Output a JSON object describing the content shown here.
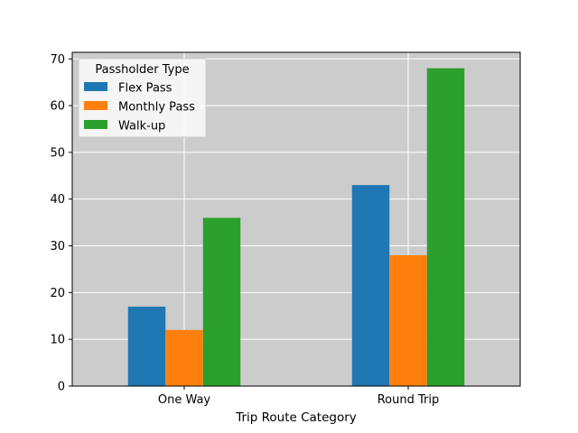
{
  "chart_data": {
    "type": "bar",
    "title": "",
    "xlabel": "Trip Route Category",
    "ylabel": "",
    "categories": [
      "One Way",
      "Round Trip"
    ],
    "series": [
      {
        "name": "Flex Pass",
        "color": "#1f77b4",
        "values": [
          17,
          43
        ]
      },
      {
        "name": "Monthly Pass",
        "color": "#ff7f0e",
        "values": [
          12,
          28
        ]
      },
      {
        "name": "Walk-up",
        "color": "#2ca02c",
        "values": [
          36,
          68
        ]
      }
    ],
    "ylim": [
      0,
      71.4
    ],
    "yticks": [
      0,
      10,
      20,
      30,
      40,
      50,
      60,
      70
    ],
    "grid": true,
    "plot_background": "#cccccc",
    "legend": {
      "title": "Passholder Type",
      "placement": "top-left"
    }
  }
}
